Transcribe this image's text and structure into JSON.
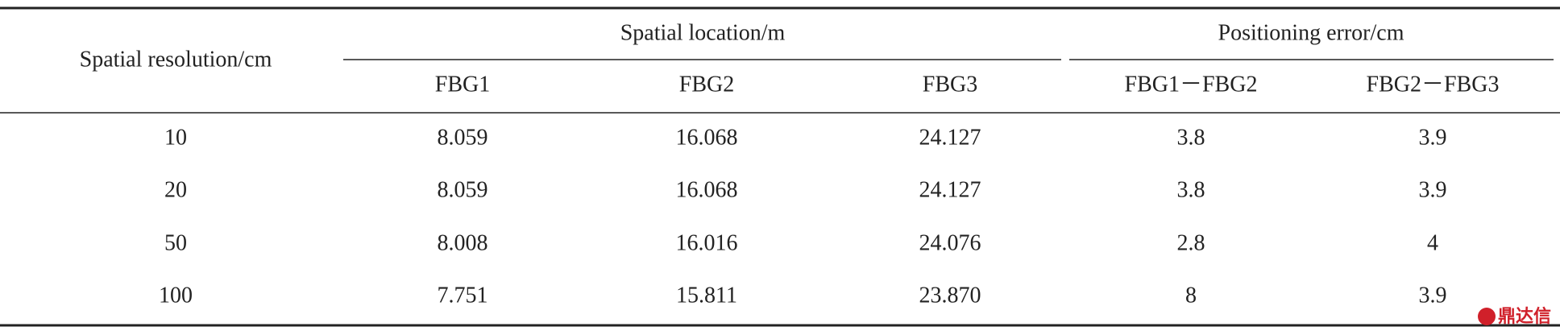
{
  "table": {
    "headers": {
      "row_label": "Spatial resolution/cm",
      "groups": [
        "Spatial location/m",
        "Positioning error/cm"
      ],
      "columns": [
        "FBG1",
        "FBG2",
        "FBG3",
        "FBG1－FBG2",
        "FBG2－FBG3"
      ]
    },
    "rows": [
      [
        "10",
        "8.059",
        "16.068",
        "24.127",
        "3.8",
        "3.9"
      ],
      [
        "20",
        "8.059",
        "16.068",
        "24.127",
        "3.8",
        "3.9"
      ],
      [
        "50",
        "8.008",
        "16.016",
        "24.076",
        "2.8",
        "4"
      ],
      [
        "100",
        "7.751",
        "15.811",
        "23.870",
        "8",
        "3.9"
      ]
    ]
  },
  "watermark": "鼎达信"
}
